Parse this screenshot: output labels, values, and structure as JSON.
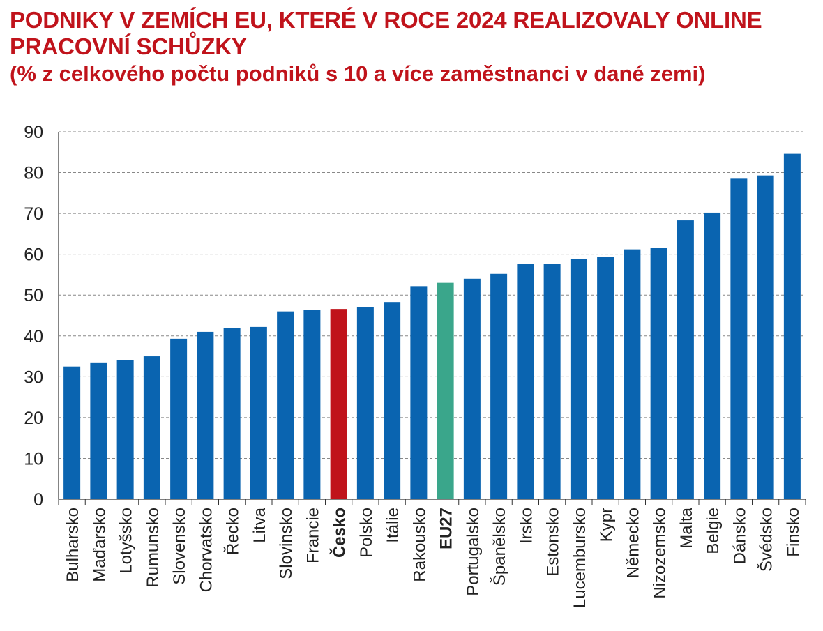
{
  "title_line1": "PODNIKY V ZEMÍCH EU, KTERÉ V ROCE 2024 REALIZOVALY ONLINE",
  "title_line2": "PRACOVNÍ SCHŮZKY",
  "subtitle": "(% z celkového počtu podniků s 10 a více zaměstnanci v dané zemi)",
  "colors": {
    "title": "#c0131b",
    "bar_default": "#0a64b0",
    "bar_czech": "#c0131b",
    "bar_eu27": "#3aa68b",
    "grid": "#888888"
  },
  "chart_data": {
    "type": "bar",
    "title": "PODNIKY V ZEMÍCH EU, KTERÉ V ROCE 2024 REALIZOVALY ONLINE PRACOVNÍ SCHŮZKY",
    "subtitle": "(% z celkového počtu podniků s 10 a více zaměstnanci v dané zemi)",
    "xlabel": "",
    "ylabel": "",
    "ylim": [
      0,
      90
    ],
    "yticks": [
      0,
      10,
      20,
      30,
      40,
      50,
      60,
      70,
      80,
      90
    ],
    "grid": "horizontal dashed",
    "categories": [
      "Bulharsko",
      "Maďarsko",
      "Lotyšsko",
      "Rumunsko",
      "Slovensko",
      "Chorvatsko",
      "Řecko",
      "Litva",
      "Slovinsko",
      "Francie",
      "Česko",
      "Polsko",
      "Itálie",
      "Rakousko",
      "EU27",
      "Portugalsko",
      "Španělsko",
      "Irsko",
      "Estonsko",
      "Lucembursko",
      "Kypr",
      "Německo",
      "Nizozemsko",
      "Malta",
      "Belgie",
      "Dánsko",
      "Švédsko",
      "Finsko"
    ],
    "values": [
      32.5,
      33.5,
      34,
      35,
      39.3,
      41,
      42,
      42.2,
      46,
      46.3,
      46.6,
      47,
      48.3,
      52.2,
      53,
      54,
      55.2,
      57.7,
      57.7,
      58.8,
      59.3,
      61.2,
      61.5,
      68.3,
      70.2,
      78.5,
      79.3,
      84.6
    ],
    "highlight": {
      "Česko": "bar_czech",
      "EU27": "bar_eu27"
    },
    "bold_labels": [
      "Česko",
      "EU27"
    ]
  }
}
